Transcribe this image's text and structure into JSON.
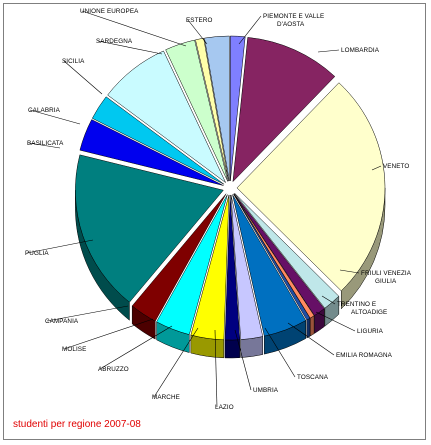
{
  "chart_data": {
    "type": "pie",
    "style": "3d-exploded",
    "caption": "studenti per regione 2007-08",
    "slices": [
      {
        "label": "PIEMONTE E VALLE D'AOSTA",
        "value": 1.6,
        "color": "#7f7fff"
      },
      {
        "label": "LOMBARDIA",
        "value": 10.5,
        "color": "#862462"
      },
      {
        "label": "VENETO",
        "value": 25.5,
        "color": "#ffffcc"
      },
      {
        "label": "FRIULI VENEZIA GIULIA",
        "value": 2.0,
        "color": "#bfe7e9"
      },
      {
        "label": "TRENTINO E ALTOADIGE",
        "value": 1.3,
        "color": "#660f66"
      },
      {
        "label": "",
        "value": 0.5,
        "color": "#ff8a60"
      },
      {
        "label": "LIGURIA",
        "value": 0.4,
        "color": "#1f4fa6"
      },
      {
        "label": "EMILIA ROMAGNA",
        "value": 4.8,
        "color": "#0070c0"
      },
      {
        "label": "TOSCANA",
        "value": 2.4,
        "color": "#c7c7ff"
      },
      {
        "label": "UMBRIA",
        "value": 1.6,
        "color": "#000080"
      },
      {
        "label": "LAZIO",
        "value": 3.6,
        "color": "#ffff00"
      },
      {
        "label": "MARCHE",
        "value": 0.0,
        "color": "#ffff00"
      },
      {
        "label": "ABRUZZO",
        "value": 3.8,
        "color": "#00ffff"
      },
      {
        "label": "MOLISE",
        "value": 0.0,
        "color": "#00ffff"
      },
      {
        "label": "CAMPANIA",
        "value": 3.0,
        "color": "#7f0000"
      },
      {
        "label": "PUGLIA",
        "value": 18.0,
        "color": "#007f7f"
      },
      {
        "label": "BASILICATA",
        "value": 3.6,
        "color": "#0000ee"
      },
      {
        "label": "CALABRIA",
        "value": 2.8,
        "color": "#00c8f0"
      },
      {
        "label": "SICILIA",
        "value": 7.8,
        "color": "#c9fbff"
      },
      {
        "label": "SARDEGNA",
        "value": 3.3,
        "color": "#ccffcc"
      },
      {
        "label": "UNIONE EUROPEA",
        "value": 0.9,
        "color": "#ffffaa"
      },
      {
        "label": "ESTERO",
        "value": 2.7,
        "color": "#a6c8f0"
      }
    ]
  }
}
